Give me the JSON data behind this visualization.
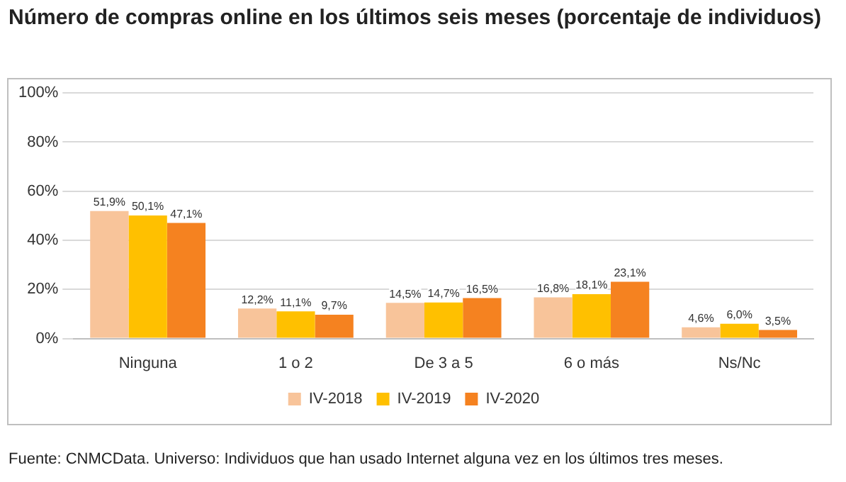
{
  "chart_data": {
    "type": "bar",
    "title": "Número de compras online en los últimos seis meses (porcentaje de individuos)",
    "categories": [
      "Ninguna",
      "1 o 2",
      "De 3 a 5",
      "6 o más",
      "Ns/Nc"
    ],
    "series": [
      {
        "name": "IV-2018",
        "color": "#f8c49a",
        "values": [
          51.9,
          12.2,
          14.5,
          16.8,
          4.6
        ],
        "value_labels": [
          "51,9%",
          "12,2%",
          "14,5%",
          "16,8%",
          "4,6%"
        ]
      },
      {
        "name": "IV-2019",
        "color": "#ffc000",
        "values": [
          50.1,
          11.1,
          14.7,
          18.1,
          6.0
        ],
        "value_labels": [
          "50,1%",
          "11,1%",
          "14,7%",
          "18,1%",
          "6,0%"
        ]
      },
      {
        "name": "IV-2020",
        "color": "#f58220",
        "values": [
          47.1,
          9.7,
          16.5,
          23.1,
          3.5
        ],
        "value_labels": [
          "47,1%",
          "9,7%",
          "16,5%",
          "23,1%",
          "3,5%"
        ]
      }
    ],
    "ylim": [
      0,
      100
    ],
    "yticks": [
      {
        "value": 0,
        "label": "0%"
      },
      {
        "value": 20,
        "label": "20%"
      },
      {
        "value": 40,
        "label": "40%"
      },
      {
        "value": 60,
        "label": "60%"
      },
      {
        "value": 80,
        "label": "80%"
      },
      {
        "value": 100,
        "label": "100%"
      }
    ],
    "grid": "y",
    "legend": "bottom",
    "annotations": [
      "Fuente: CNMCData. Universo: Individuos que han usado Internet alguna vez en los últimos tres meses."
    ]
  }
}
